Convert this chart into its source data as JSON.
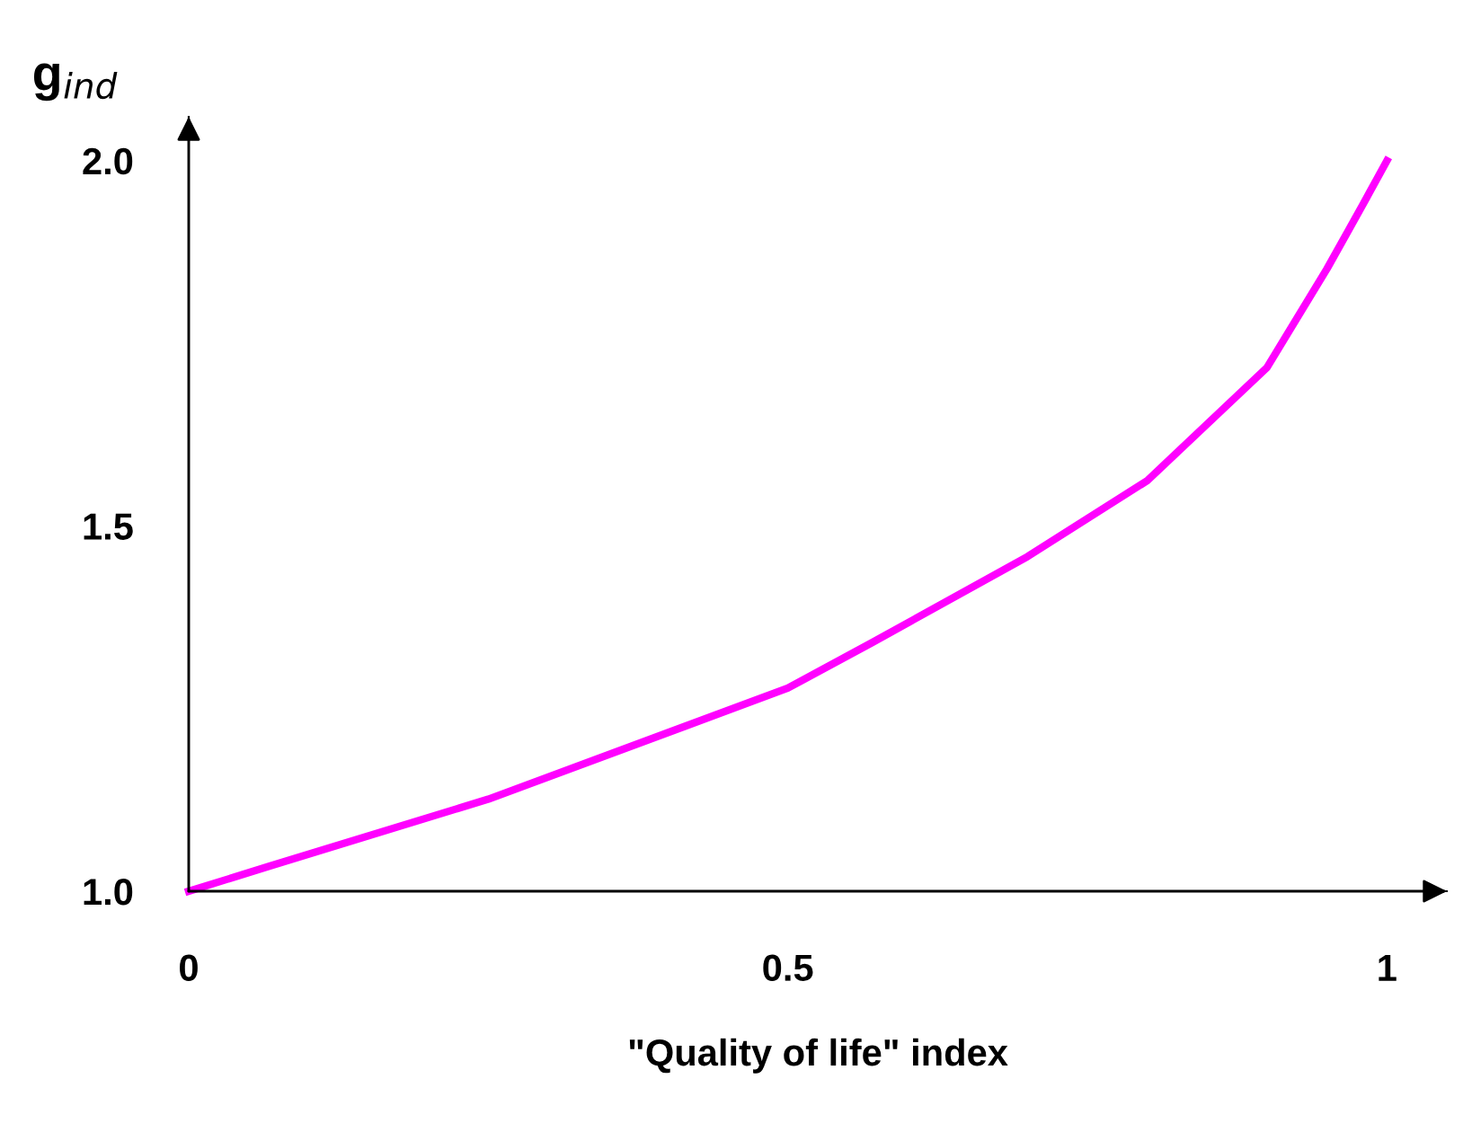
{
  "chart_data": {
    "type": "line",
    "xlabel": "\"Quality of life\" index",
    "ylabel": "g$_{ind}$",
    "x": [
      0,
      0.067,
      0.25,
      0.5,
      0.57,
      0.7,
      0.8,
      0.9,
      0.95,
      0.98,
      1.0
    ],
    "series": [
      {
        "color": "#ff00ff",
        "values": [
          1.0,
          1.034,
          1.126,
          1.278,
          1.34,
          1.458,
          1.562,
          1.717,
          1.852,
          1.94,
          2.0
        ]
      }
    ],
    "xlim": [
      0,
      1.05
    ],
    "ylim": [
      1.0,
      2.06
    ],
    "xticks": [
      0,
      0.5,
      1
    ],
    "yticks": [
      {
        "value": 1.0,
        "label": "1.0"
      },
      1.5,
      {
        "value": 2.0,
        "label": "2.0"
      }
    ],
    "grid": false,
    "legend": false,
    "marker": "none",
    "line_style": "solid"
  }
}
